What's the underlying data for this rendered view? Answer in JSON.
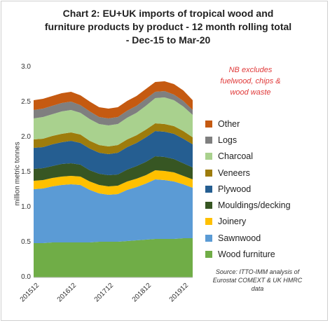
{
  "chart_data": {
    "type": "area",
    "stacked": true,
    "title": "Chart 2: EU+UK imports of tropical wood and furniture products by product - 12 month rolling total - Dec-15 to Mar-20",
    "ylabel": "million metric tonnes",
    "ylim": [
      0,
      3.0
    ],
    "yticks": [
      "0.0",
      "0.5",
      "1.0",
      "1.5",
      "2.0",
      "2.5",
      "3.0"
    ],
    "xticks": [
      "201512",
      "201612",
      "201712",
      "201812",
      "201912"
    ],
    "x": [
      "201512",
      "201603",
      "201606",
      "201609",
      "201612",
      "201703",
      "201706",
      "201709",
      "201712",
      "201803",
      "201806",
      "201809",
      "201812",
      "201903",
      "201906",
      "201909",
      "201912",
      "202003"
    ],
    "series": [
      {
        "name": "Wood furniture",
        "color": "#70ad47",
        "values": [
          0.49,
          0.49,
          0.5,
          0.5,
          0.5,
          0.5,
          0.5,
          0.51,
          0.51,
          0.51,
          0.52,
          0.53,
          0.54,
          0.55,
          0.55,
          0.55,
          0.56,
          0.56
        ]
      },
      {
        "name": "Sawnwood",
        "color": "#5b9bd5",
        "values": [
          0.77,
          0.78,
          0.8,
          0.82,
          0.83,
          0.82,
          0.75,
          0.69,
          0.67,
          0.68,
          0.73,
          0.76,
          0.8,
          0.85,
          0.84,
          0.82,
          0.77,
          0.72
        ]
      },
      {
        "name": "Joinery",
        "color": "#ffc000",
        "values": [
          0.12,
          0.12,
          0.12,
          0.12,
          0.12,
          0.12,
          0.12,
          0.12,
          0.12,
          0.12,
          0.12,
          0.12,
          0.12,
          0.13,
          0.13,
          0.13,
          0.12,
          0.12
        ]
      },
      {
        "name": "Mouldings/decking",
        "color": "#375623",
        "values": [
          0.17,
          0.17,
          0.17,
          0.18,
          0.18,
          0.17,
          0.16,
          0.16,
          0.16,
          0.16,
          0.17,
          0.18,
          0.19,
          0.2,
          0.2,
          0.19,
          0.18,
          0.17
        ]
      },
      {
        "name": "Plywood",
        "color": "#255e91",
        "values": [
          0.3,
          0.3,
          0.31,
          0.31,
          0.32,
          0.31,
          0.31,
          0.3,
          0.3,
          0.31,
          0.32,
          0.33,
          0.35,
          0.36,
          0.36,
          0.36,
          0.35,
          0.33
        ]
      },
      {
        "name": "Veneers",
        "color": "#9e7c0c",
        "values": [
          0.12,
          0.12,
          0.12,
          0.12,
          0.12,
          0.12,
          0.11,
          0.11,
          0.11,
          0.11,
          0.11,
          0.11,
          0.11,
          0.11,
          0.11,
          0.11,
          0.11,
          0.1
        ]
      },
      {
        "name": "Charcoal",
        "color": "#a9d18e",
        "values": [
          0.3,
          0.31,
          0.31,
          0.32,
          0.32,
          0.31,
          0.31,
          0.3,
          0.3,
          0.3,
          0.31,
          0.32,
          0.34,
          0.36,
          0.38,
          0.37,
          0.35,
          0.32
        ]
      },
      {
        "name": "Logs",
        "color": "#7f7f7f",
        "values": [
          0.12,
          0.12,
          0.12,
          0.12,
          0.12,
          0.11,
          0.11,
          0.1,
          0.1,
          0.1,
          0.1,
          0.1,
          0.1,
          0.09,
          0.09,
          0.08,
          0.08,
          0.07
        ]
      },
      {
        "name": "Other",
        "color": "#c55a11",
        "values": [
          0.14,
          0.14,
          0.14,
          0.14,
          0.14,
          0.14,
          0.14,
          0.14,
          0.14,
          0.14,
          0.14,
          0.14,
          0.14,
          0.14,
          0.14,
          0.15,
          0.15,
          0.14
        ]
      }
    ],
    "legend": "right",
    "grid": false,
    "note": "NB excludes fuelwood, chips & wood waste",
    "source": "Source: ITTO-IMM analysis of Eurostat COMEXT & UK HMRC data"
  }
}
